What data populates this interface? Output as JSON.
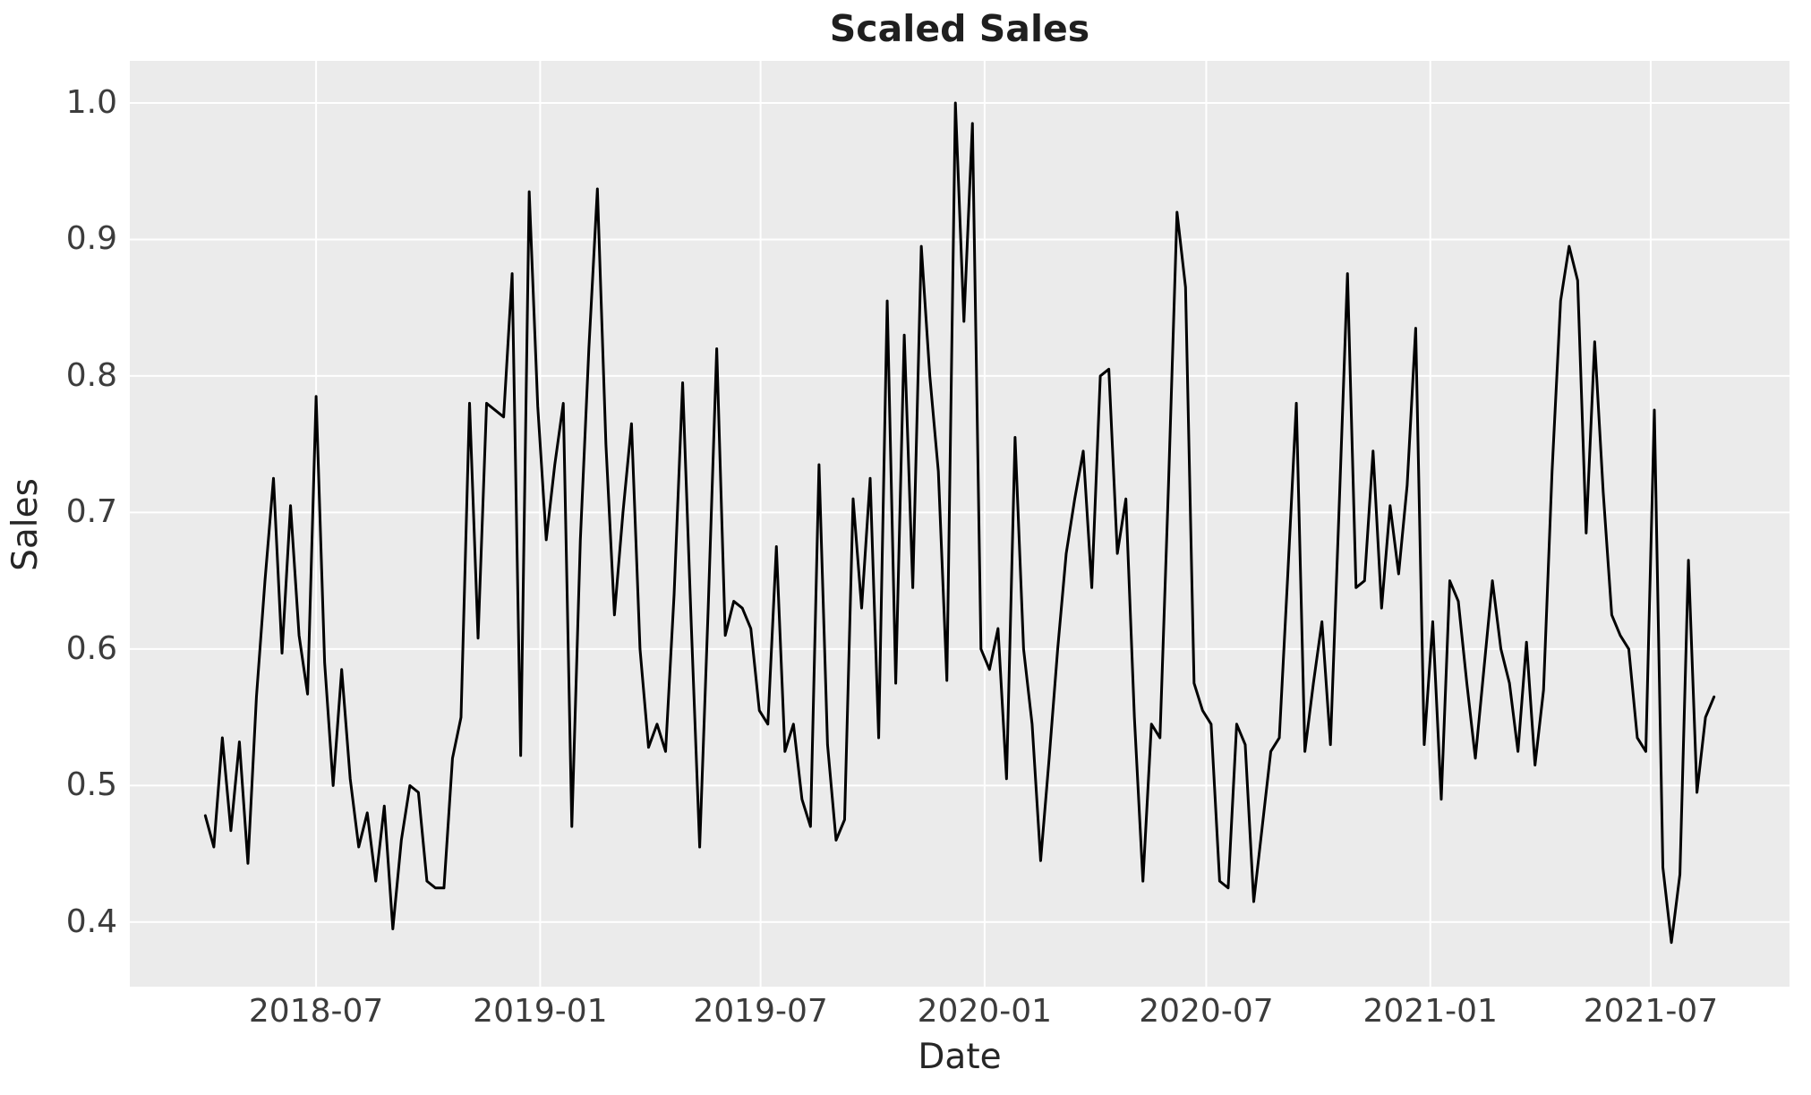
{
  "title": "Scaled Sales",
  "colors": {
    "figure_background": "#ffffff",
    "plot_background": "#ebebeb",
    "gridline": "#ffffff",
    "line": "#000000",
    "title_text": "#1f1f1f",
    "tick_text": "#3c3c3c",
    "label_text": "#262626"
  },
  "chart_data": {
    "type": "line",
    "title": "Scaled Sales",
    "xlabel": "Date",
    "ylabel": "Sales",
    "grid": true,
    "legend": false,
    "x_start": "2018-04-01",
    "x_step_days": 7,
    "xlim": [
      "2018-01-29",
      "2021-10-23"
    ],
    "ylim": [
      0.3527,
      1.0308
    ],
    "y_ticks": [
      0.4,
      0.5,
      0.6,
      0.7,
      0.8,
      0.9,
      1.0
    ],
    "x_ticks": [
      {
        "date": "2018-07-01",
        "label": "2018-07"
      },
      {
        "date": "2019-01-01",
        "label": "2019-01"
      },
      {
        "date": "2019-07-01",
        "label": "2019-07"
      },
      {
        "date": "2020-01-01",
        "label": "2020-01"
      },
      {
        "date": "2020-07-01",
        "label": "2020-07"
      },
      {
        "date": "2021-01-01",
        "label": "2021-01"
      },
      {
        "date": "2021-07-01",
        "label": "2021-07"
      }
    ],
    "series": [
      {
        "name": "Sales",
        "color": "#000000",
        "values": [
          0.478,
          0.455,
          0.535,
          0.467,
          0.532,
          0.443,
          0.565,
          0.65,
          0.725,
          0.597,
          0.705,
          0.61,
          0.567,
          0.785,
          0.59,
          0.5,
          0.585,
          0.505,
          0.455,
          0.48,
          0.43,
          0.485,
          0.395,
          0.46,
          0.5,
          0.495,
          0.43,
          0.425,
          0.425,
          0.52,
          0.55,
          0.78,
          0.608,
          0.78,
          0.775,
          0.77,
          0.875,
          0.522,
          0.935,
          0.778,
          0.68,
          0.735,
          0.78,
          0.47,
          0.68,
          0.82,
          0.937,
          0.75,
          0.625,
          0.7,
          0.765,
          0.6,
          0.528,
          0.545,
          0.525,
          0.64,
          0.795,
          0.62,
          0.455,
          0.63,
          0.82,
          0.61,
          0.635,
          0.63,
          0.615,
          0.555,
          0.545,
          0.675,
          0.525,
          0.545,
          0.49,
          0.47,
          0.735,
          0.53,
          0.46,
          0.475,
          0.71,
          0.63,
          0.725,
          0.535,
          0.855,
          0.575,
          0.83,
          0.645,
          0.895,
          0.8,
          0.73,
          0.577,
          1.0,
          0.84,
          0.985,
          0.6,
          0.585,
          0.615,
          0.505,
          0.755,
          0.6,
          0.545,
          0.445,
          0.52,
          0.6,
          0.67,
          0.71,
          0.745,
          0.645,
          0.8,
          0.805,
          0.67,
          0.71,
          0.55,
          0.43,
          0.545,
          0.535,
          0.72,
          0.92,
          0.865,
          0.575,
          0.555,
          0.545,
          0.43,
          0.425,
          0.545,
          0.53,
          0.415,
          0.47,
          0.525,
          0.535,
          0.655,
          0.78,
          0.525,
          0.575,
          0.62,
          0.53,
          0.7,
          0.875,
          0.645,
          0.65,
          0.745,
          0.63,
          0.705,
          0.655,
          0.72,
          0.835,
          0.53,
          0.62,
          0.49,
          0.65,
          0.635,
          0.575,
          0.52,
          0.585,
          0.65,
          0.6,
          0.575,
          0.525,
          0.605,
          0.515,
          0.57,
          0.73,
          0.855,
          0.895,
          0.87,
          0.685,
          0.825,
          0.715,
          0.625,
          0.61,
          0.6,
          0.535,
          0.525,
          0.775,
          0.44,
          0.385,
          0.435,
          0.665,
          0.495,
          0.55,
          0.565
        ]
      }
    ]
  }
}
